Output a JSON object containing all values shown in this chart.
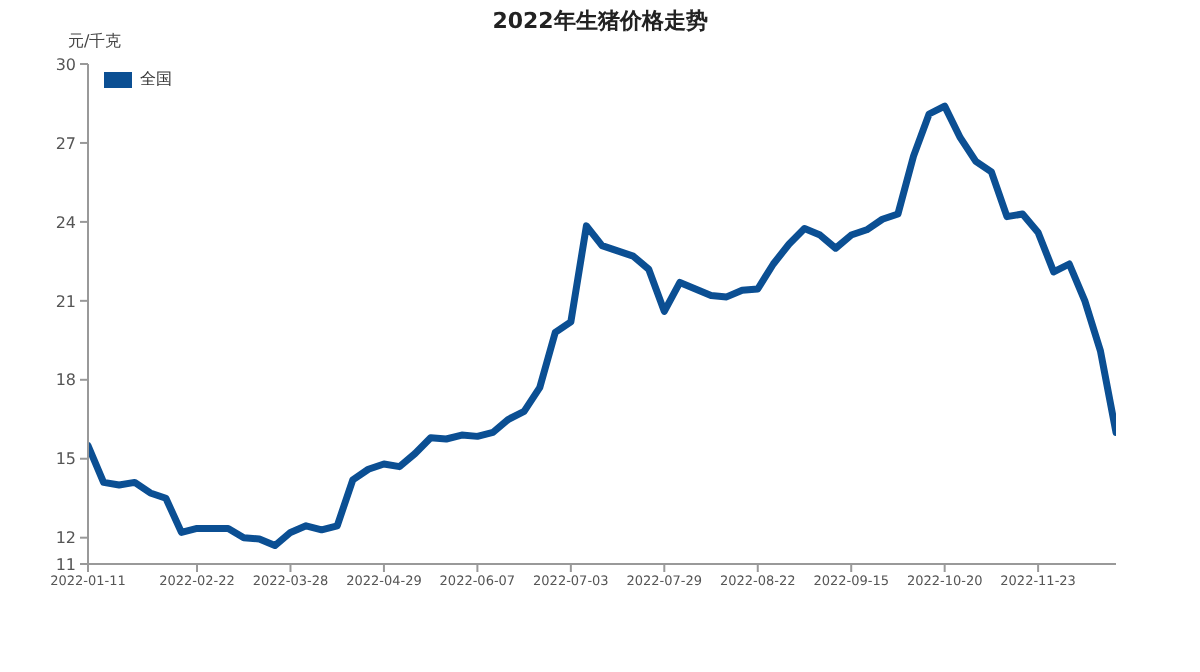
{
  "chart_data": {
    "type": "line",
    "title": "2022年生猪价格走势",
    "ylabel": "元/千克",
    "categories": [
      "2022-01-11",
      null,
      null,
      null,
      null,
      null,
      null,
      "2022-02-22",
      null,
      null,
      null,
      null,
      null,
      "2022-03-28",
      null,
      null,
      null,
      null,
      null,
      "2022-04-29",
      null,
      null,
      null,
      null,
      null,
      "2022-06-07",
      null,
      null,
      null,
      null,
      null,
      "2022-07-03",
      null,
      null,
      null,
      null,
      null,
      "2022-07-29",
      null,
      null,
      null,
      null,
      null,
      "2022-08-22",
      null,
      null,
      null,
      null,
      null,
      "2022-09-15",
      null,
      null,
      null,
      null,
      null,
      "2022-10-20",
      null,
      null,
      null,
      null,
      null,
      "2022-11-23",
      null,
      null,
      null,
      null,
      null
    ],
    "series": [
      {
        "name": "全国",
        "color": "#0b4f93",
        "values": [
          15.5,
          14.1,
          14.0,
          14.1,
          13.7,
          13.5,
          12.2,
          12.35,
          12.35,
          12.35,
          12.0,
          11.95,
          11.7,
          12.2,
          12.45,
          12.3,
          12.45,
          14.2,
          14.6,
          14.8,
          14.7,
          15.2,
          15.8,
          15.75,
          15.9,
          15.85,
          16.0,
          16.5,
          16.8,
          17.7,
          19.8,
          20.2,
          23.85,
          23.1,
          22.9,
          22.7,
          22.2,
          20.6,
          21.7,
          21.45,
          21.2,
          21.15,
          21.4,
          21.45,
          22.4,
          23.15,
          23.75,
          23.5,
          23.0,
          23.5,
          23.7,
          24.1,
          24.3,
          26.5,
          28.1,
          28.4,
          27.2,
          26.3,
          25.9,
          24.2,
          24.3,
          23.6,
          22.1,
          22.4,
          21.0,
          19.1,
          16.0
        ]
      }
    ],
    "ylim": [
      11,
      30
    ],
    "yticks": [
      11,
      12,
      15,
      18,
      21,
      24,
      27,
      30
    ],
    "grid": false,
    "legend": "top left",
    "marker": "none",
    "line_style": "solid"
  }
}
